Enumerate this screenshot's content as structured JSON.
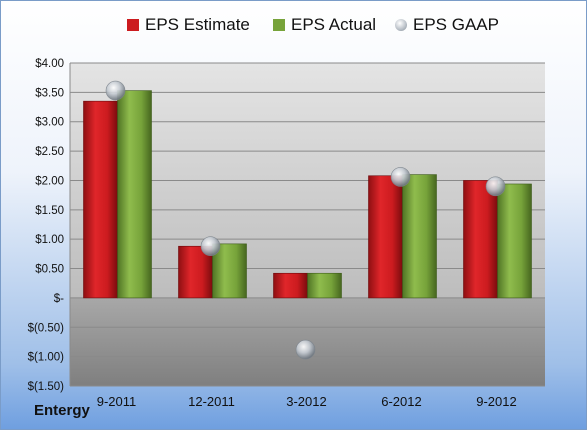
{
  "company": "Entergy",
  "colors": {
    "estimate": "#cc1b1f",
    "actual": "#77a33a",
    "gaap": "#b7bec6"
  },
  "legend": [
    {
      "label": "EPS Estimate",
      "icon": "square-red"
    },
    {
      "label": "EPS Actual",
      "icon": "square-green"
    },
    {
      "label": "EPS GAAP",
      "icon": "circle-gray"
    }
  ],
  "chart_data": {
    "type": "bar",
    "categories": [
      "9-2011",
      "12-2011",
      "3-2012",
      "6-2012",
      "9-2012"
    ],
    "series": [
      {
        "name": "EPS Estimate",
        "type": "bar",
        "values": [
          3.35,
          0.88,
          0.42,
          2.08,
          2.0
        ]
      },
      {
        "name": "EPS Actual",
        "type": "bar",
        "values": [
          3.53,
          0.92,
          0.42,
          2.1,
          1.94
        ]
      },
      {
        "name": "EPS GAAP",
        "type": "scatter",
        "values": [
          3.53,
          0.88,
          -0.88,
          2.06,
          1.9
        ]
      }
    ],
    "ylim": [
      -1.5,
      4.0
    ],
    "yticks": [
      4.0,
      3.5,
      3.0,
      2.5,
      2.0,
      1.5,
      1.0,
      0.5,
      0.0,
      -0.5,
      -1.0,
      -1.5
    ],
    "ytick_labels": [
      "$4.00",
      "$3.50",
      "$3.00",
      "$2.50",
      "$2.00",
      "$1.50",
      "$1.00",
      "$0.50",
      "$-",
      "$(0.50)",
      "$(1.00)",
      "$(1.50)"
    ],
    "grid": true,
    "legend_position": "top"
  }
}
